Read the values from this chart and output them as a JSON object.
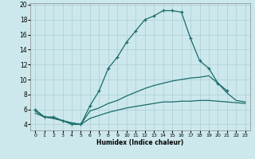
{
  "xlabel": "Humidex (Indice chaleur)",
  "bg_color": "#cce8ec",
  "line_color": "#1a6b6b",
  "grid_color": "#aacdd4",
  "xlim": [
    -0.5,
    23.5
  ],
  "ylim": [
    3.2,
    20.2
  ],
  "xticks": [
    0,
    1,
    2,
    3,
    4,
    5,
    6,
    7,
    8,
    9,
    10,
    11,
    12,
    13,
    14,
    15,
    16,
    17,
    18,
    19,
    20,
    21,
    22,
    23
  ],
  "yticks": [
    4,
    6,
    8,
    10,
    12,
    14,
    16,
    18,
    20
  ],
  "line1_y": [
    6.0,
    5.0,
    5.0,
    4.5,
    4.0,
    4.0,
    6.5,
    8.5,
    11.5,
    13.0,
    15.0,
    16.5,
    18.0,
    18.5,
    19.2,
    19.2,
    19.0,
    15.5,
    12.5,
    11.5,
    9.5,
    8.5,
    null,
    null
  ],
  "line3_y": [
    5.8,
    5.0,
    4.8,
    4.5,
    4.2,
    4.0,
    5.8,
    6.2,
    6.8,
    7.2,
    7.8,
    8.3,
    8.8,
    9.2,
    9.5,
    9.8,
    10.0,
    10.2,
    10.3,
    10.5,
    9.5,
    8.2,
    7.2,
    7.0
  ],
  "line4_y": [
    5.5,
    5.0,
    4.8,
    4.5,
    4.2,
    4.0,
    4.8,
    5.2,
    5.6,
    5.9,
    6.2,
    6.4,
    6.6,
    6.8,
    7.0,
    7.0,
    7.1,
    7.1,
    7.2,
    7.2,
    7.1,
    7.0,
    6.9,
    6.8
  ]
}
